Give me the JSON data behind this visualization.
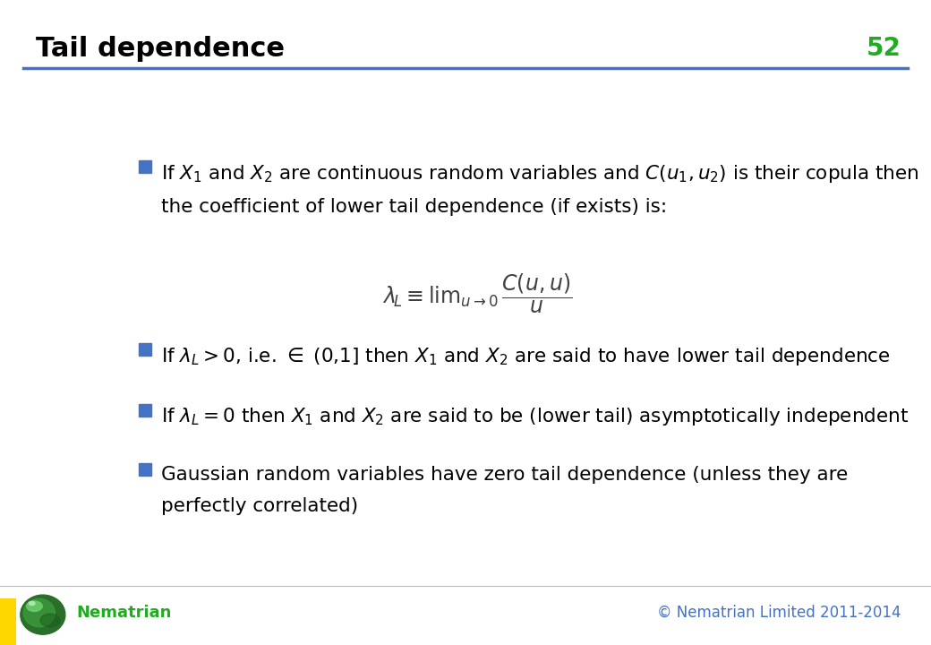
{
  "title": "Tail dependence",
  "slide_number": "52",
  "title_color": "#000000",
  "slide_number_color": "#22aa22",
  "title_fontsize": 22,
  "slide_number_fontsize": 20,
  "header_line_color": "#4472C4",
  "bullet_square_color": "#4472C4",
  "text_color": "#000000",
  "formula_color": "#404040",
  "background_color": "#ffffff",
  "footer_text_left": "Nematrian",
  "footer_text_right": "© Nematrian Limited 2011-2014",
  "footer_color": "#4472C4",
  "footer_left_color": "#22aa22",
  "yellow_bar_color": "#FFD700"
}
